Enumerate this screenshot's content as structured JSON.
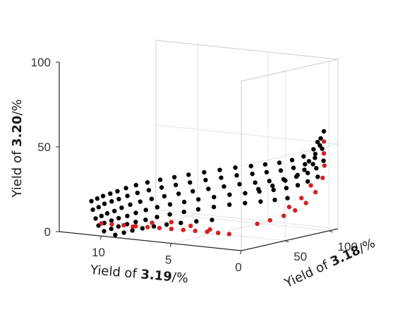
{
  "chart_data": {
    "type": "scatter",
    "projection": "3d",
    "xlabel": {
      "prefix": "Yield of ",
      "bold": "3.19",
      "suffix": "/%"
    },
    "ylabel": {
      "prefix": "Yield of ",
      "bold": "3.18",
      "suffix": "/%"
    },
    "zlabel": {
      "prefix": "Yield of ",
      "bold": "3.20",
      "suffix": "/%"
    },
    "xlim": [
      0,
      13
    ],
    "ylim": [
      0,
      110
    ],
    "zlim": [
      0,
      100
    ],
    "xticks": [
      "0",
      "5",
      "10"
    ],
    "yticks": [
      "50",
      "100"
    ],
    "zticks": [
      "0",
      "50",
      "100"
    ],
    "grid": true,
    "series": [
      {
        "color": "#000000",
        "points": [
          [
            10.7,
            0,
            20.0
          ],
          [
            10.6,
            5,
            21.0
          ],
          [
            10.5,
            10,
            22.0
          ],
          [
            10.3,
            15,
            23.0
          ],
          [
            10.1,
            20,
            24.0
          ],
          [
            9.8,
            25,
            25.5
          ],
          [
            9.4,
            30,
            27.0
          ],
          [
            8.9,
            35,
            28.5
          ],
          [
            8.3,
            40,
            30.0
          ],
          [
            7.6,
            45,
            31.5
          ],
          [
            6.9,
            50,
            33.0
          ],
          [
            6.1,
            55,
            34.5
          ],
          [
            5.3,
            60,
            36.0
          ],
          [
            4.5,
            65,
            37.5
          ],
          [
            3.7,
            70,
            38.5
          ],
          [
            3.0,
            75,
            39.5
          ],
          [
            2.3,
            80,
            40.5
          ],
          [
            1.7,
            85,
            42.0
          ],
          [
            1.2,
            90,
            44.0
          ],
          [
            0.8,
            95,
            48.0
          ],
          [
            0.6,
            100,
            54.0
          ],
          [
            0.5,
            102,
            58.0
          ],
          [
            10.6,
            0,
            15.0
          ],
          [
            10.5,
            5,
            16.0
          ],
          [
            10.4,
            10,
            17.5
          ],
          [
            10.2,
            15,
            18.5
          ],
          [
            10.0,
            20,
            19.5
          ],
          [
            9.7,
            25,
            21.0
          ],
          [
            9.3,
            30,
            22.5
          ],
          [
            8.8,
            35,
            24.0
          ],
          [
            8.2,
            40,
            25.5
          ],
          [
            7.5,
            45,
            27.0
          ],
          [
            6.8,
            50,
            28.5
          ],
          [
            6.0,
            55,
            30.0
          ],
          [
            5.2,
            60,
            31.5
          ],
          [
            4.4,
            65,
            33.0
          ],
          [
            3.6,
            70,
            34.0
          ],
          [
            2.9,
            75,
            35.0
          ],
          [
            2.2,
            80,
            36.0
          ],
          [
            1.6,
            85,
            37.5
          ],
          [
            1.1,
            90,
            39.5
          ],
          [
            0.7,
            95,
            43.0
          ],
          [
            0.5,
            100,
            48.0
          ],
          [
            10.4,
            0,
            10.0
          ],
          [
            10.3,
            5,
            11.0
          ],
          [
            10.2,
            10,
            12.0
          ],
          [
            10.0,
            15,
            13.0
          ],
          [
            9.8,
            20,
            14.5
          ],
          [
            9.5,
            25,
            16.0
          ],
          [
            9.1,
            30,
            17.5
          ],
          [
            8.6,
            35,
            19.0
          ],
          [
            8.0,
            40,
            20.5
          ],
          [
            7.3,
            45,
            22.0
          ],
          [
            6.6,
            50,
            23.5
          ],
          [
            5.8,
            55,
            25.0
          ],
          [
            5.0,
            60,
            26.5
          ],
          [
            4.2,
            65,
            28.0
          ],
          [
            3.4,
            70,
            29.0
          ],
          [
            2.7,
            75,
            30.0
          ],
          [
            2.0,
            80,
            31.0
          ],
          [
            1.4,
            85,
            32.5
          ],
          [
            0.9,
            90,
            34.5
          ],
          [
            0.6,
            95,
            37.0
          ],
          [
            0.4,
            100,
            41.0
          ],
          [
            10.2,
            0,
            6.0
          ],
          [
            10.1,
            5,
            7.0
          ],
          [
            9.9,
            10,
            8.0
          ],
          [
            9.7,
            15,
            9.0
          ],
          [
            9.4,
            20,
            10.0
          ],
          [
            9.1,
            25,
            11.5
          ],
          [
            8.7,
            30,
            13.0
          ],
          [
            8.2,
            35,
            14.5
          ],
          [
            7.6,
            40,
            16.0
          ],
          [
            6.9,
            45,
            17.5
          ],
          [
            6.2,
            50,
            19.0
          ],
          [
            5.4,
            55,
            20.5
          ],
          [
            4.6,
            60,
            22.0
          ],
          [
            3.8,
            65,
            23.0
          ],
          [
            3.1,
            70,
            24.0
          ],
          [
            2.4,
            75,
            25.0
          ],
          [
            1.8,
            80,
            26.0
          ],
          [
            1.3,
            85,
            27.5
          ],
          [
            0.9,
            90,
            29.5
          ],
          [
            0.5,
            95,
            32.0
          ],
          [
            9.8,
            0,
            3.0
          ],
          [
            9.6,
            5,
            4.0
          ],
          [
            9.4,
            10,
            5.0
          ],
          [
            9.1,
            15,
            6.0
          ],
          [
            8.8,
            20,
            7.0
          ],
          [
            8.4,
            25,
            8.0
          ],
          [
            7.9,
            30,
            9.5
          ],
          [
            7.3,
            35,
            11.0
          ],
          [
            6.6,
            40,
            12.5
          ],
          [
            5.9,
            45,
            14.0
          ],
          [
            5.1,
            50,
            15.5
          ],
          [
            4.3,
            55,
            17.0
          ],
          [
            3.5,
            60,
            18.0
          ],
          [
            2.7,
            65,
            19.0
          ],
          [
            2.0,
            70,
            20.0
          ],
          [
            1.4,
            75,
            21.0
          ],
          [
            9.0,
            0,
            1.5
          ],
          [
            8.7,
            5,
            2.5
          ],
          [
            8.4,
            10,
            3.5
          ],
          [
            8.0,
            15,
            4.5
          ],
          [
            7.5,
            20,
            5.5
          ],
          [
            6.9,
            25,
            6.5
          ],
          [
            6.2,
            30,
            7.5
          ],
          [
            5.4,
            35,
            8.5
          ],
          [
            4.6,
            40,
            9.5
          ],
          [
            0.7,
            98,
            52.0
          ],
          [
            0.6,
            99,
            50.0
          ],
          [
            0.8,
            97,
            45.0
          ],
          [
            1.0,
            93,
            41.0
          ],
          [
            0.9,
            96,
            39.0
          ],
          [
            1.2,
            91,
            36.0
          ],
          [
            1.5,
            88,
            33.0
          ],
          [
            2.0,
            82,
            30.0
          ],
          [
            2.6,
            77,
            27.0
          ],
          [
            3.3,
            72,
            25.0
          ]
        ]
      },
      {
        "color": "#d62020",
        "points": [
          [
            4.0,
            50,
            0.5
          ],
          [
            4.6,
            47,
            1.0
          ],
          [
            5.2,
            44,
            1.5
          ],
          [
            5.8,
            40,
            2.0
          ],
          [
            6.4,
            36,
            2.5
          ],
          [
            7.0,
            32,
            3.0
          ],
          [
            7.6,
            28,
            3.5
          ],
          [
            8.2,
            24,
            4.0
          ],
          [
            8.8,
            20,
            4.5
          ],
          [
            9.4,
            16,
            5.0
          ],
          [
            10.0,
            12,
            5.5
          ],
          [
            10.5,
            8,
            6.0
          ],
          [
            5.0,
            44,
            3.0
          ],
          [
            6.0,
            38,
            5.0
          ],
          [
            7.0,
            32,
            7.0
          ],
          [
            8.0,
            26,
            6.5
          ],
          [
            9.0,
            20,
            4.0
          ],
          [
            3.0,
            66,
            5.5
          ],
          [
            2.4,
            71,
            7.5
          ],
          [
            1.8,
            77,
            10.0
          ],
          [
            1.3,
            82,
            13.0
          ],
          [
            0.9,
            88,
            17.0
          ],
          [
            0.6,
            94,
            23.0
          ],
          [
            0.4,
            99,
            31.0
          ],
          [
            0.4,
            101,
            38.0
          ],
          [
            0.5,
            102,
            45.0
          ],
          [
            0.5,
            102,
            52.0
          ],
          [
            1.6,
            80,
            15.0
          ],
          [
            1.1,
            86,
            20.0
          ],
          [
            0.8,
            92,
            27.0
          ]
        ]
      }
    ]
  }
}
